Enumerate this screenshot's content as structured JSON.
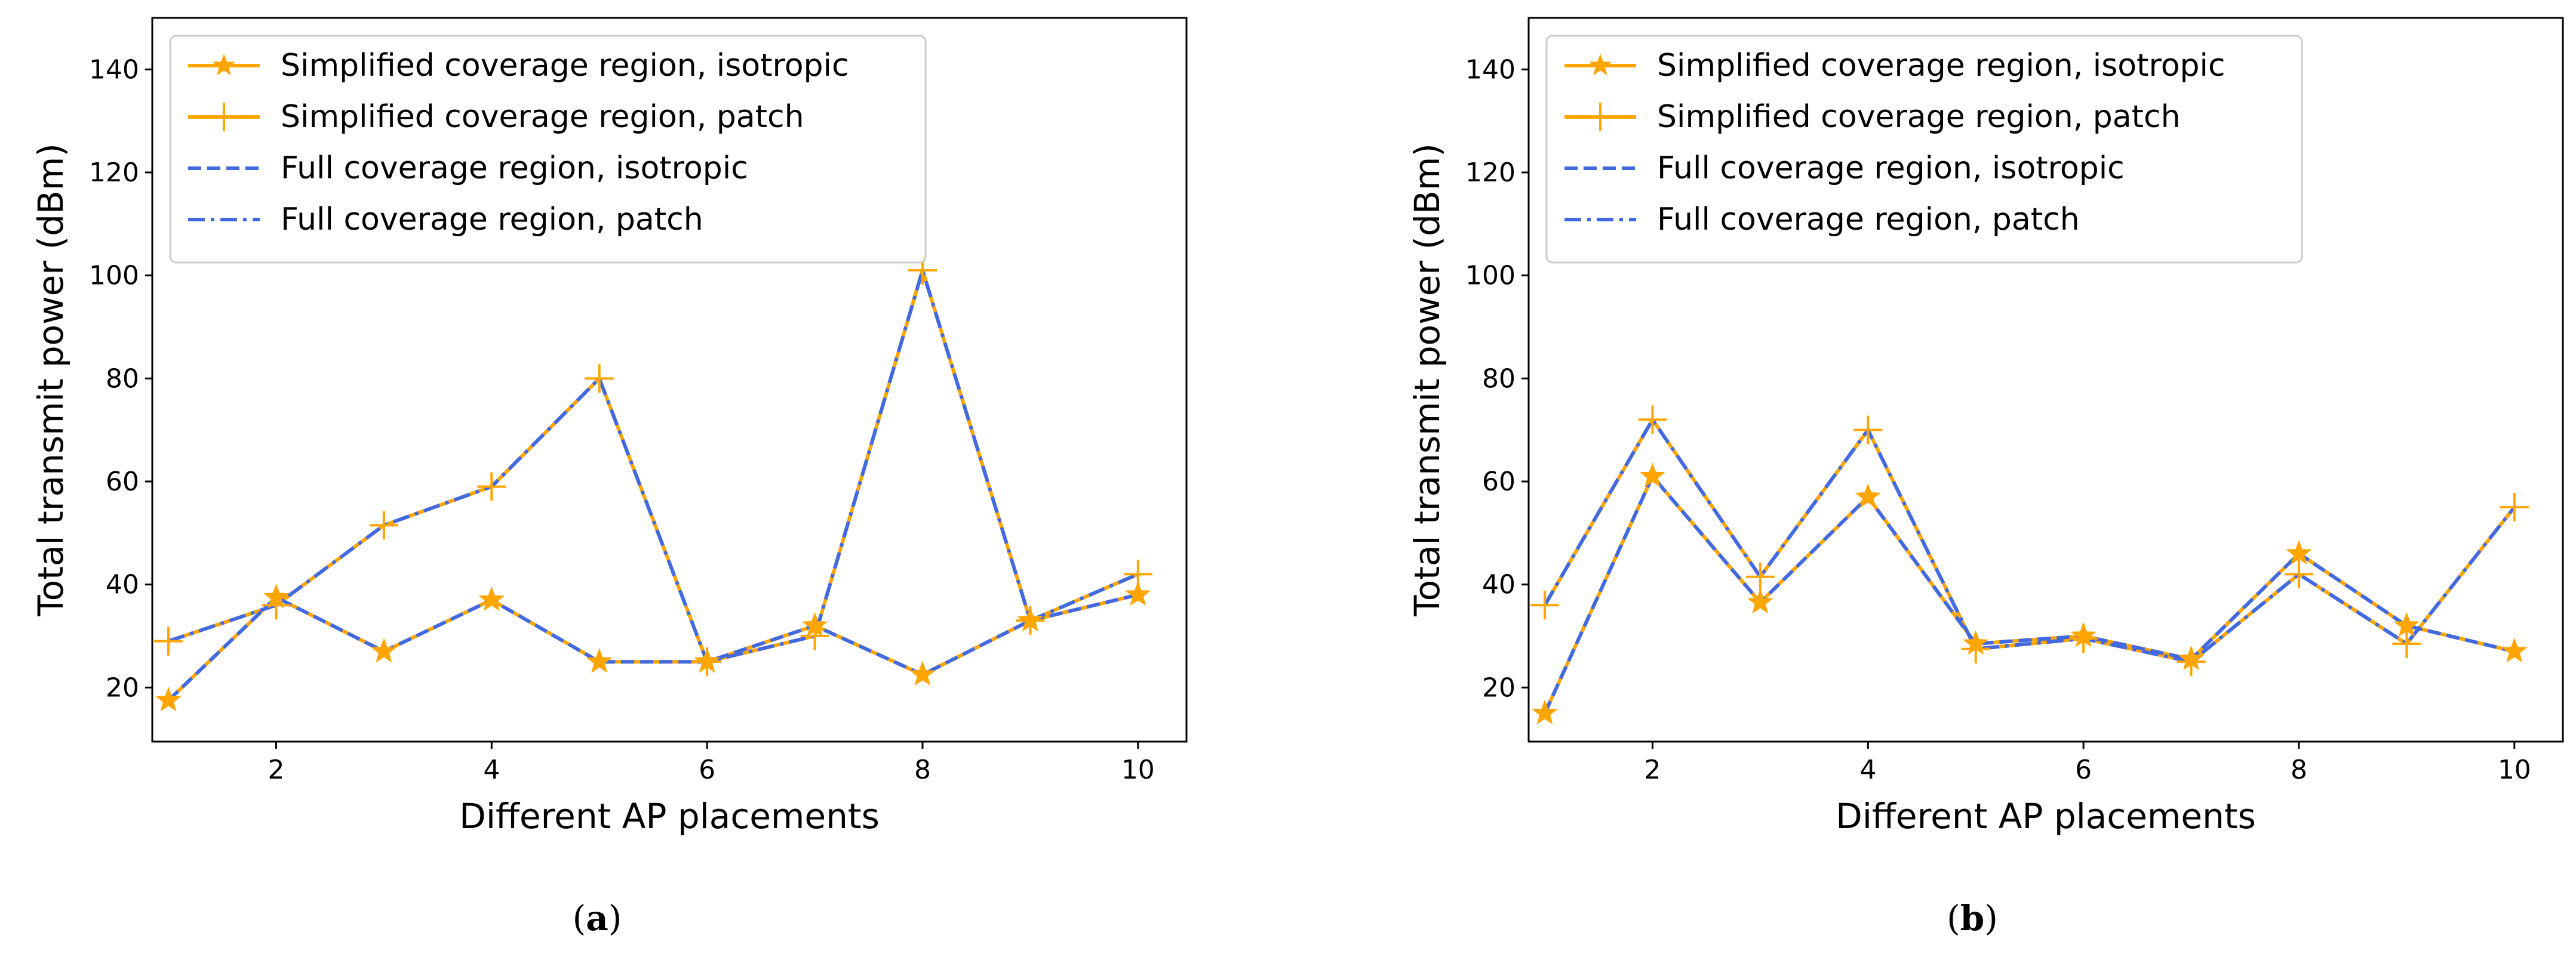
{
  "colors": {
    "simplified": "#FFA500",
    "full": "#4169E1",
    "axis": "#000000"
  },
  "chart_data": [
    {
      "type": "line",
      "caption_open": "(",
      "caption_letter": "a",
      "caption_close": ")",
      "xlabel": "Different AP placements",
      "ylabel": "Total transmit power (dBm)",
      "xlim": [
        0.85,
        10.45
      ],
      "ylim": [
        9.5,
        150
      ],
      "xticks": [
        2,
        4,
        6,
        8,
        10
      ],
      "yticks": [
        20,
        40,
        60,
        80,
        100,
        120,
        140
      ],
      "legend_position": "top-left",
      "x": [
        1,
        2,
        3,
        4,
        5,
        6,
        7,
        8,
        9,
        10
      ],
      "series": [
        {
          "name": "Simplified coverage region, isotropic",
          "line": "solid",
          "marker": "star",
          "color": "#FFA500",
          "values": [
            17.5,
            37.5,
            27,
            37,
            25,
            25,
            32,
            22.5,
            33,
            38
          ]
        },
        {
          "name": "Simplified coverage region, patch",
          "line": "solid",
          "marker": "plus",
          "color": "#FFA500",
          "values": [
            29,
            36,
            51.5,
            59,
            80,
            25,
            30,
            101,
            33,
            42
          ]
        },
        {
          "name": "Full coverage region, isotropic",
          "line": "dashed",
          "marker": "none",
          "color": "#4169E1",
          "values": [
            17.5,
            37.5,
            27,
            37,
            25,
            25,
            32,
            22.5,
            33,
            38
          ]
        },
        {
          "name": "Full coverage region, patch",
          "line": "dashdot",
          "marker": "none",
          "color": "#4169E1",
          "values": [
            29,
            36,
            51.5,
            59,
            80,
            25,
            30,
            101,
            33,
            42
          ]
        }
      ]
    },
    {
      "type": "line",
      "caption_open": "(",
      "caption_letter": "b",
      "caption_close": ")",
      "xlabel": "Different AP placements",
      "ylabel": "Total transmit power (dBm)",
      "xlim": [
        0.85,
        10.45
      ],
      "ylim": [
        9.5,
        150
      ],
      "xticks": [
        2,
        4,
        6,
        8,
        10
      ],
      "yticks": [
        20,
        40,
        60,
        80,
        100,
        120,
        140
      ],
      "legend_position": "top-left",
      "x": [
        1,
        2,
        3,
        4,
        5,
        6,
        7,
        8,
        9,
        10
      ],
      "series": [
        {
          "name": "Simplified coverage region, isotropic",
          "line": "solid",
          "marker": "star",
          "color": "#FFA500",
          "values": [
            15,
            61,
            36.5,
            57,
            28.5,
            30,
            25.5,
            46,
            32,
            27
          ]
        },
        {
          "name": "Simplified coverage region, patch",
          "line": "solid",
          "marker": "plus",
          "color": "#FFA500",
          "values": [
            36,
            72,
            41.5,
            70,
            27.5,
            29.5,
            25,
            42,
            28.5,
            55
          ]
        },
        {
          "name": "Full coverage region, isotropic",
          "line": "dashed",
          "marker": "none",
          "color": "#4169E1",
          "values": [
            15,
            61,
            36.5,
            57,
            28.5,
            30,
            25.5,
            46,
            32,
            27
          ]
        },
        {
          "name": "Full coverage region, patch",
          "line": "dashdot",
          "marker": "none",
          "color": "#4169E1",
          "values": [
            36,
            72,
            41.5,
            70,
            27.5,
            29.5,
            25,
            42,
            28.5,
            55
          ]
        }
      ]
    }
  ]
}
